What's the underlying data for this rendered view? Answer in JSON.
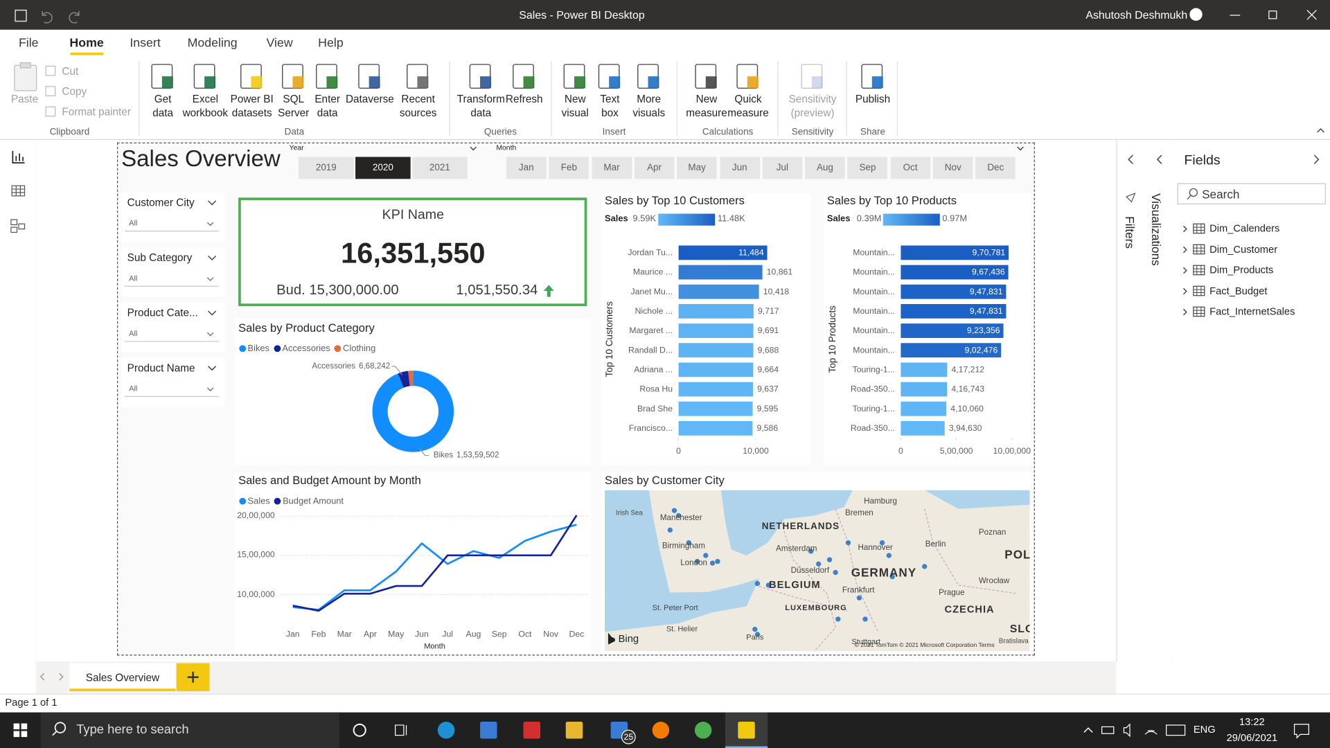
{
  "window": {
    "title": "Sales - Power BI Desktop",
    "user": "Ashutosh Deshmukh"
  },
  "ribbon": {
    "tabs": [
      "File",
      "Home",
      "Insert",
      "Modeling",
      "View",
      "Help"
    ],
    "active_tab": "Home",
    "clipboard": {
      "paste": "Paste",
      "small": [
        "Cut",
        "Copy",
        "Format painter"
      ]
    },
    "buttons": [
      {
        "lines": [
          "Get",
          "data"
        ]
      },
      {
        "lines": [
          "Excel",
          "workbook"
        ]
      },
      {
        "lines": [
          "Power BI",
          "datasets"
        ]
      },
      {
        "lines": [
          "SQL",
          "Server"
        ]
      },
      {
        "lines": [
          "Enter",
          "data"
        ]
      },
      {
        "lines": [
          "Dataverse"
        ]
      },
      {
        "lines": [
          "Recent",
          "sources"
        ]
      },
      {
        "lines": [
          "Transform",
          "data"
        ]
      },
      {
        "lines": [
          "Refresh"
        ]
      },
      {
        "lines": [
          "New",
          "visual"
        ]
      },
      {
        "lines": [
          "Text",
          "box"
        ]
      },
      {
        "lines": [
          "More",
          "visuals"
        ]
      },
      {
        "lines": [
          "New",
          "measure"
        ]
      },
      {
        "lines": [
          "Quick",
          "measure"
        ]
      },
      {
        "lines": [
          "Sensitivity",
          "(preview)"
        ],
        "disabled": true
      },
      {
        "lines": [
          "Publish"
        ]
      }
    ],
    "groups": [
      "Clipboard",
      "Data",
      "Queries",
      "Insert",
      "Calculations",
      "Sensitivity",
      "Share"
    ]
  },
  "report": {
    "title": "Sales Overview",
    "year_slicer": {
      "label": "Year",
      "options": [
        "2019",
        "2020",
        "2021"
      ],
      "selected": "2020"
    },
    "month_slicer": {
      "label": "Month",
      "options": [
        "Jan",
        "Feb",
        "Mar",
        "Apr",
        "May",
        "Jun",
        "Jul",
        "Aug",
        "Sep",
        "Oct",
        "Nov",
        "Dec"
      ]
    },
    "slicers": [
      {
        "title": "Customer City",
        "value": "All"
      },
      {
        "title": "Sub Category",
        "value": "All"
      },
      {
        "title": "Product Cate...",
        "value": "All"
      },
      {
        "title": "Product Name",
        "value": "All"
      }
    ],
    "kpi": {
      "name": "KPI Name",
      "value": "16,351,550",
      "budget": "Bud. 15,300,000.00",
      "variance": "1,051,550.34"
    },
    "map": {
      "title": "Sales by Customer City",
      "labels": [
        "Irish Sea",
        "Manchester",
        "Birmingham",
        "London",
        "NETHERLANDS",
        "Amsterdam",
        "Hamburg",
        "Bremen",
        "Hannover",
        "Berlin",
        "Poznan",
        "POL",
        "Düsseldorf",
        "BELGIUM",
        "GERMANY",
        "Frankfurt",
        "Prague",
        "Wrocław",
        "LUXEMBOURG",
        "CZECHIA",
        "St. Peter Port",
        "St. Helier",
        "Paris",
        "Stuttgart",
        "SLO",
        "Bratislava"
      ],
      "provider": "Bing",
      "attribution": "© 2021 TomTom © 2021 Microsoft Corporation Terms"
    }
  },
  "chart_data": [
    {
      "type": "donut",
      "title": "Sales by Product Category",
      "categories": [
        "Bikes",
        "Accessories",
        "Clothing"
      ],
      "values": [
        15359502,
        668242,
        323806
      ],
      "value_labels": [
        "1,53,59,502",
        "6,68,242",
        null
      ],
      "colors": [
        "#118DFF",
        "#12239E",
        "#E66C37"
      ]
    },
    {
      "type": "bar",
      "orientation": "horizontal",
      "title": "Sales by Top 10 Customers",
      "y_label": "Top 10 Customers",
      "categories": [
        "Jordan Tu...",
        "Maurice ...",
        "Janet Mu...",
        "Nichole ...",
        "Margaret ...",
        "Randall D...",
        "Adriana ...",
        "Rosa Hu",
        "Brad She",
        "Francisco..."
      ],
      "values": [
        11484,
        10861,
        10418,
        9717,
        9691,
        9688,
        9664,
        9637,
        9595,
        9586
      ],
      "value_labels": [
        "11,484",
        "10,861",
        "10,418",
        "9,717",
        "9,691",
        "9,688",
        "9,664",
        "9,637",
        "9,595",
        "9,586"
      ],
      "xlim": [
        0,
        11484
      ],
      "xticks": [
        0,
        {
          "value": 10000,
          "label": "10,000"
        }
      ],
      "color_scale": {
        "title": "Sales",
        "min": {
          "value": 9586,
          "label": "9.59K"
        },
        "max": {
          "value": 11484,
          "label": "11.48K"
        },
        "colors": [
          "#62B8F6",
          "#1A5EC4"
        ]
      }
    },
    {
      "type": "bar",
      "orientation": "horizontal",
      "title": "Sales by Top 10 Products",
      "y_label": "Top 10 Products",
      "categories": [
        "Mountain...",
        "Mountain...",
        "Mountain...",
        "Mountain...",
        "Mountain...",
        "Mountain...",
        "Touring-1...",
        "Road-350...",
        "Touring-1...",
        "Road-350..."
      ],
      "values": [
        970781,
        967436,
        947831,
        947831,
        923356,
        902476,
        417212,
        416743,
        410060,
        394630
      ],
      "value_labels": [
        "9,70,781",
        "9,67,436",
        "9,47,831",
        "9,47,831",
        "9,23,356",
        "9,02,476",
        "4,17,212",
        "4,16,743",
        "4,10,060",
        "3,94,630"
      ],
      "xlim": [
        0,
        1000000
      ],
      "xticks": [
        0,
        {
          "value": 500000,
          "label": "5,00,000"
        },
        {
          "value": 1000000,
          "label": "10,00,000"
        }
      ],
      "color_scale": {
        "title": "Sales",
        "min": {
          "value": 394630,
          "label": "0.39M"
        },
        "max": {
          "value": 970781,
          "label": "0.97M"
        },
        "colors": [
          "#62B8F6",
          "#1A5EC4"
        ]
      }
    },
    {
      "type": "line",
      "title": "Sales and Budget Amount by Month",
      "x_label": "Month",
      "categories": [
        "Jan",
        "Feb",
        "Mar",
        "Apr",
        "May",
        "Jun",
        "Jul",
        "Aug",
        "Sep",
        "Oct",
        "Nov",
        "Dec"
      ],
      "series": [
        {
          "name": "Sales",
          "color": "#118DFF",
          "values": [
            840000,
            805000,
            1054000,
            1054000,
            1293000,
            1652000,
            1391000,
            1554000,
            1467000,
            1685000,
            1804000,
            1891000
          ]
        },
        {
          "name": "Budget Amount",
          "color": "#12239E",
          "values": [
            858000,
            793000,
            1011000,
            1011000,
            1109000,
            1109000,
            1500000,
            1500000,
            1500000,
            1500000,
            1500000,
            2011000
          ]
        }
      ],
      "ylim": [
        600000,
        2050000
      ],
      "yticks": [
        {
          "value": 1000000,
          "label": "10,00,000"
        },
        {
          "value": 1500000,
          "label": "15,00,000"
        },
        {
          "value": 2000000,
          "label": "20,00,000"
        }
      ],
      "grid": true
    }
  ],
  "panes": {
    "filters": "Filters",
    "visualizations": "Visualizations",
    "fields": {
      "title": "Fields",
      "search": "Search",
      "tables": [
        "Dim_Calenders",
        "Dim_Customer",
        "Dim_Products",
        "Fact_Budget",
        "Fact_InternetSales"
      ]
    }
  },
  "page_tabs": {
    "tabs": [
      "Sales Overview"
    ],
    "status": "Page 1 of 1"
  },
  "taskbar": {
    "search": "Type here to search",
    "mail_badge": "25",
    "language": "ENG",
    "time": "13:22",
    "date": "29/06/2021"
  }
}
